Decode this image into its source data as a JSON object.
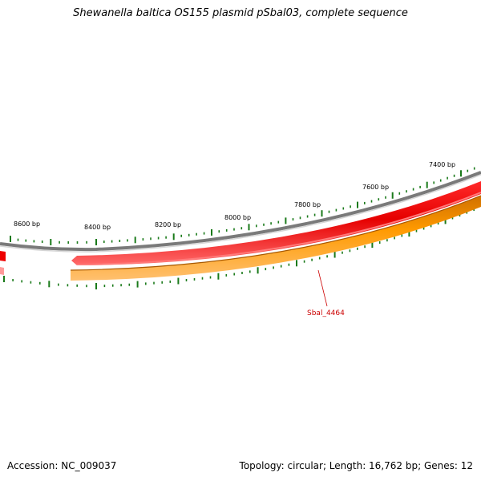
{
  "map": {
    "title": "Shewanella baltica OS155 plasmid pSbal03, complete sequence",
    "ticks": [
      {
        "bp": 7400,
        "label": "7400 bp"
      },
      {
        "bp": 7600,
        "label": "7600 bp"
      },
      {
        "bp": 7800,
        "label": "7800 bp"
      },
      {
        "bp": 8000,
        "label": "8000 bp"
      },
      {
        "bp": 8200,
        "label": "8200 bp"
      },
      {
        "bp": 8400,
        "label": "8400 bp"
      },
      {
        "bp": 8600,
        "label": "8600 bp"
      }
    ],
    "genes": [
      {
        "label": "Sbal_4464",
        "strand": "reverse",
        "color": "#ff0000"
      },
      {
        "label": "",
        "strand": "forward",
        "color": "#ff9900"
      }
    ],
    "colors": {
      "backbone": "#808080",
      "ticks": "#1a7a1a",
      "gene_red": "#ff0000",
      "gene_orange": "#ff9900",
      "label": "#cc0000"
    }
  },
  "footer": {
    "accession": "Accession: NC_009037",
    "summary": "Topology: circular; Length: 16,762 bp; Genes: 12"
  }
}
